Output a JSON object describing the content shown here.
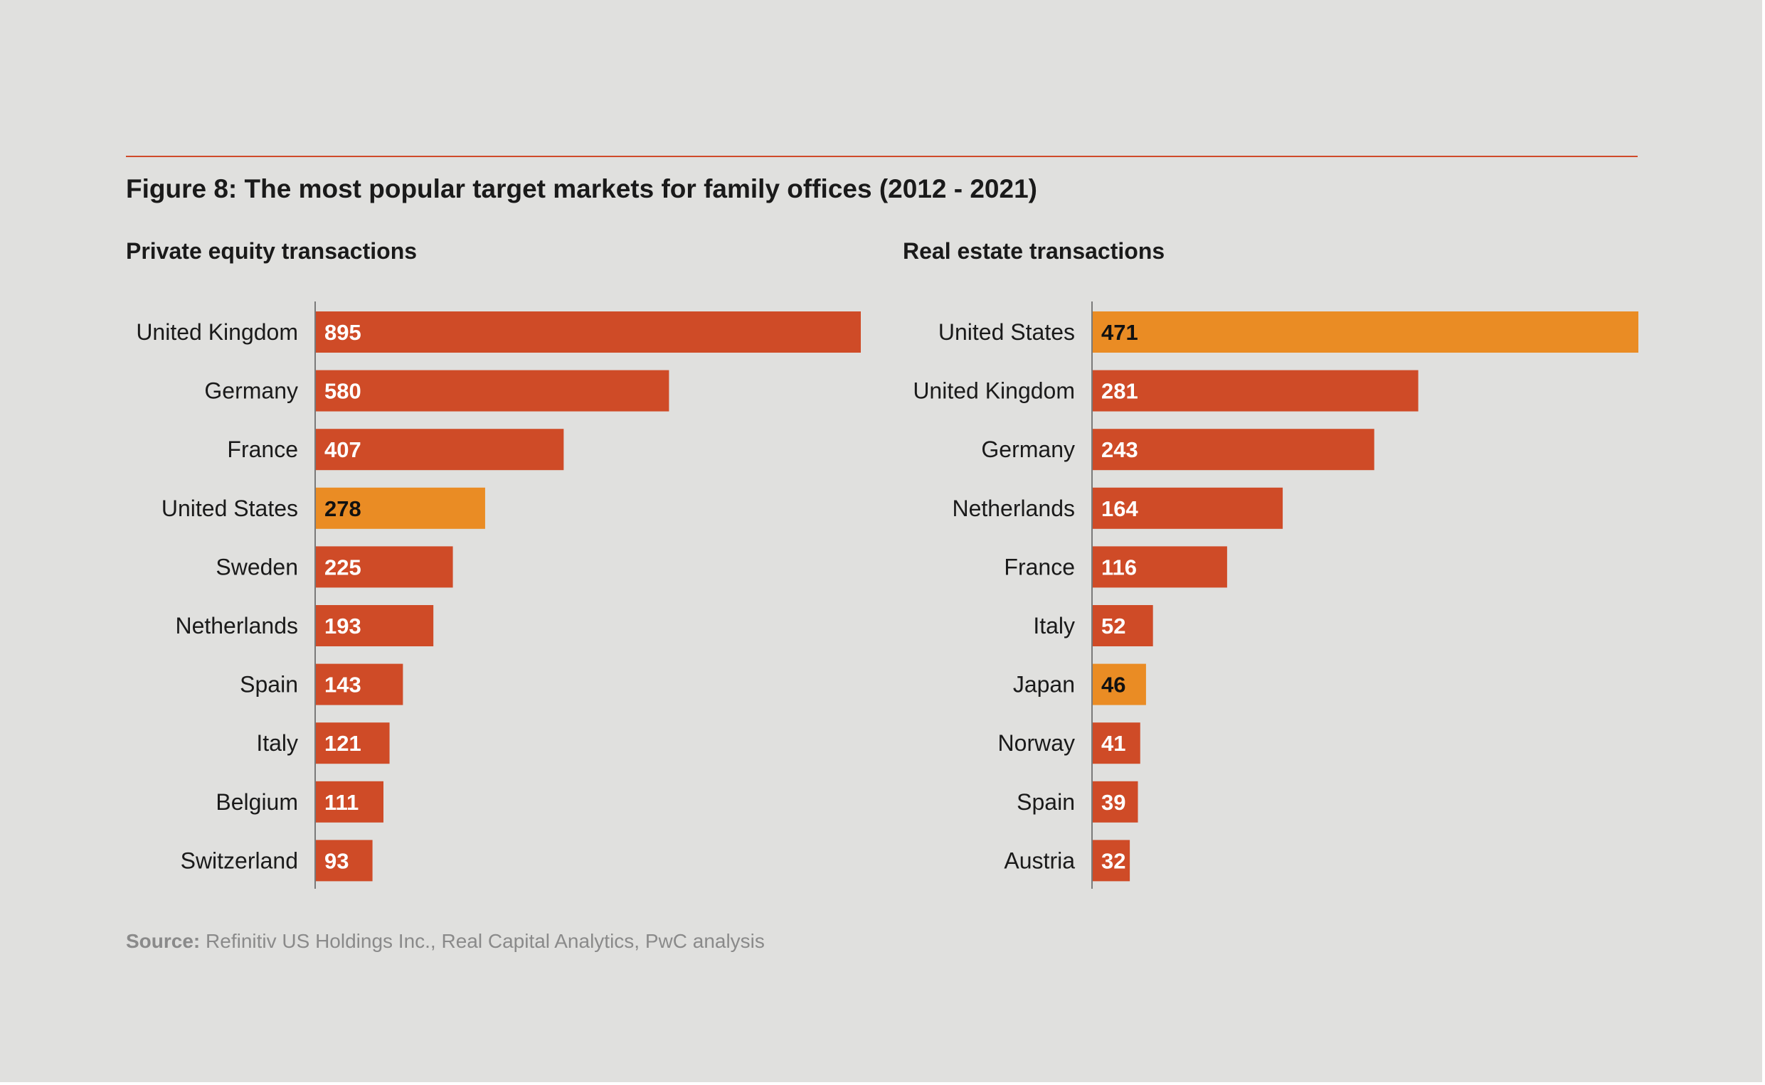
{
  "title": "Figure 8: The most popular target markets for family offices (2012 - 2021)",
  "source": {
    "label": "Source:",
    "text": " Refinitiv US Holdings Inc., Real Capital Analytics, PwC analysis"
  },
  "colors": {
    "background": "#E0E0DE",
    "bar": "#CF4B27",
    "highlight": "#EA8C24",
    "rule": "#D04A2A"
  },
  "chart_data": [
    {
      "type": "bar",
      "orientation": "horizontal",
      "title": "Private equity transactions",
      "categories": [
        "United Kingdom",
        "Germany",
        "France",
        "United States",
        "Sweden",
        "Netherlands",
        "Spain",
        "Italy",
        "Belgium",
        "Switzerland"
      ],
      "values": [
        895,
        580,
        407,
        278,
        225,
        193,
        143,
        121,
        111,
        93
      ],
      "highlight": [
        "United States"
      ],
      "xlim": [
        0,
        895
      ]
    },
    {
      "type": "bar",
      "orientation": "horizontal",
      "title": "Real estate transactions",
      "categories": [
        "United States",
        "United Kingdom",
        "Germany",
        "Netherlands",
        "France",
        "Italy",
        "Japan",
        "Norway",
        "Spain",
        "Austria"
      ],
      "values": [
        471,
        281,
        243,
        164,
        116,
        52,
        46,
        41,
        39,
        32
      ],
      "highlight": [
        "United States",
        "Japan"
      ],
      "xlim": [
        0,
        471
      ]
    }
  ]
}
